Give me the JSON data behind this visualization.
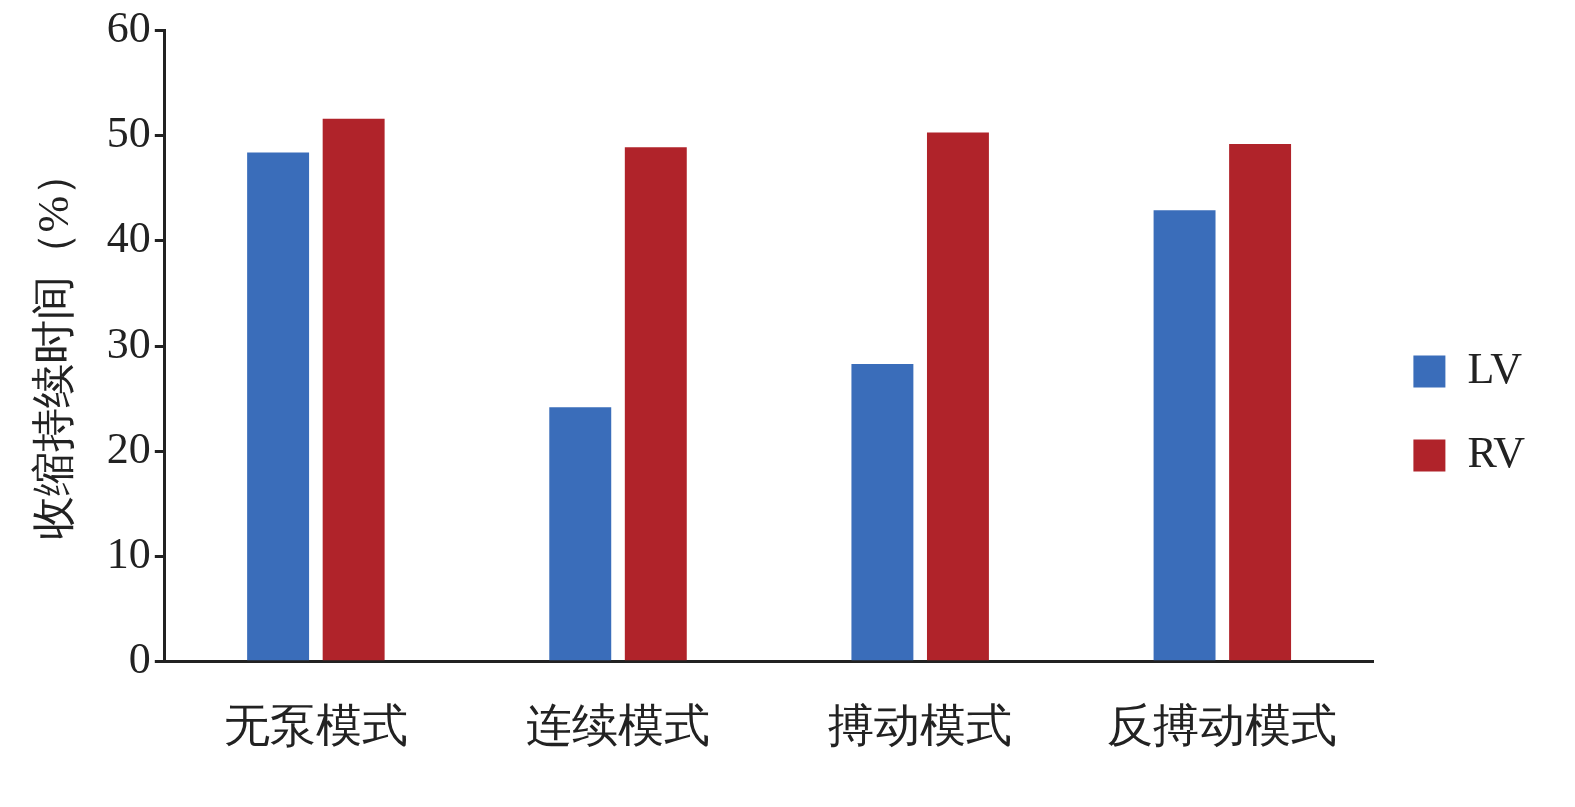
{
  "chart_data": {
    "type": "bar",
    "ylabel": "收缩持续时间（%）",
    "categories": [
      "无泵模式",
      "连续模式",
      "搏动模式",
      "反搏动模式"
    ],
    "series": [
      {
        "name": "LV",
        "color": "#3a6dba",
        "values": [
          48.4,
          24.2,
          28.3,
          42.9
        ]
      },
      {
        "name": "RV",
        "color": "#b0232a",
        "values": [
          51.6,
          48.9,
          50.3,
          49.2
        ]
      }
    ],
    "ylim": [
      0,
      60
    ],
    "yticks": [
      0,
      10,
      20,
      30,
      40,
      50,
      60
    ],
    "grid": false,
    "legend": "right"
  }
}
